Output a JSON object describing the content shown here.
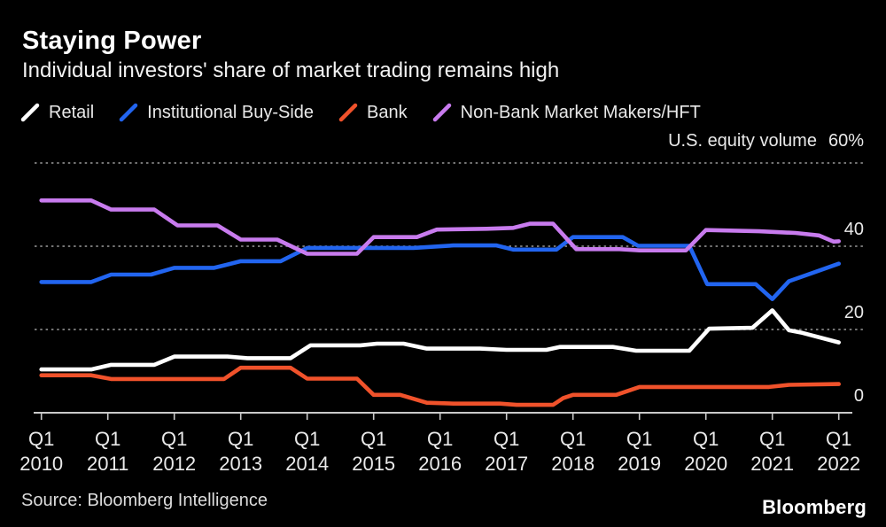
{
  "header": {
    "title": "Staying Power",
    "subtitle": "Individual investors' share of market trading remains high"
  },
  "legend": [
    {
      "label": "Retail",
      "color": "#ffffff"
    },
    {
      "label": "Institutional Buy-Side",
      "color": "#2265f0"
    },
    {
      "label": "Bank",
      "color": "#f0522b"
    },
    {
      "label": "Non-Bank Market Makers/HFT",
      "color": "#c87bee"
    }
  ],
  "chart_data": {
    "type": "line",
    "title": "Staying Power",
    "subtitle": "Individual investors' share of market trading remains high",
    "axis_note": "U.S. equity volume",
    "axis_note_value": "60%",
    "unit": "%",
    "x_range": [
      2010,
      2022
    ],
    "y_range": [
      0,
      60
    ],
    "grid": "horizontal dotted lines at 20, 40, 60",
    "legend_position": "top",
    "y_gridlines": [
      20,
      40,
      60
    ],
    "y_labels": [
      {
        "value": 40,
        "label": "40"
      },
      {
        "value": 20,
        "label": "20"
      },
      {
        "value": 0,
        "label": "0"
      }
    ],
    "x_ticks": [
      {
        "quarter": "Q1",
        "year": "2010"
      },
      {
        "quarter": "Q1",
        "year": "2011"
      },
      {
        "quarter": "Q1",
        "year": "2012"
      },
      {
        "quarter": "Q1",
        "year": "2013"
      },
      {
        "quarter": "Q1",
        "year": "2014"
      },
      {
        "quarter": "Q1",
        "year": "2015"
      },
      {
        "quarter": "Q1",
        "year": "2016"
      },
      {
        "quarter": "Q1",
        "year": "2017"
      },
      {
        "quarter": "Q1",
        "year": "2018"
      },
      {
        "quarter": "Q1",
        "year": "2019"
      },
      {
        "quarter": "Q1",
        "year": "2020"
      },
      {
        "quarter": "Q1",
        "year": "2021"
      },
      {
        "quarter": "Q1",
        "year": "2022"
      }
    ],
    "series": [
      {
        "name": "Retail",
        "color": "#ffffff",
        "points": [
          [
            2010,
            10.4
          ],
          [
            2010.75,
            10.4
          ],
          [
            2011.05,
            11.5
          ],
          [
            2011.7,
            11.5
          ],
          [
            2012,
            13.5
          ],
          [
            2012.8,
            13.5
          ],
          [
            2013.1,
            13.1
          ],
          [
            2013.75,
            13.1
          ],
          [
            2014.05,
            16.2
          ],
          [
            2014.8,
            16.2
          ],
          [
            2015.05,
            16.6
          ],
          [
            2015.45,
            16.6
          ],
          [
            2015.8,
            15.4
          ],
          [
            2016.6,
            15.4
          ],
          [
            2017,
            15.1
          ],
          [
            2017.6,
            15.1
          ],
          [
            2017.8,
            15.8
          ],
          [
            2018.6,
            15.8
          ],
          [
            2018.95,
            14.9
          ],
          [
            2019.75,
            14.9
          ],
          [
            2020.05,
            20.2
          ],
          [
            2020.7,
            20.4
          ],
          [
            2021,
            24.6
          ],
          [
            2021.25,
            19.8
          ],
          [
            2021.45,
            19.2
          ],
          [
            2022,
            16.9
          ]
        ]
      },
      {
        "name": "Bank",
        "color": "#f0522b",
        "points": [
          [
            2010,
            9.0
          ],
          [
            2010.75,
            9.0
          ],
          [
            2011.05,
            8.1
          ],
          [
            2012.75,
            8.1
          ],
          [
            2013,
            10.8
          ],
          [
            2013.75,
            10.8
          ],
          [
            2014,
            8.2
          ],
          [
            2014.75,
            8.2
          ],
          [
            2015,
            4.3
          ],
          [
            2015.4,
            4.3
          ],
          [
            2015.8,
            2.4
          ],
          [
            2016.2,
            2.2
          ],
          [
            2016.9,
            2.2
          ],
          [
            2017.15,
            1.9
          ],
          [
            2017.7,
            1.9
          ],
          [
            2017.85,
            3.5
          ],
          [
            2018,
            4.3
          ],
          [
            2018.65,
            4.3
          ],
          [
            2019,
            6.2
          ],
          [
            2020.95,
            6.2
          ],
          [
            2021.25,
            6.7
          ],
          [
            2022,
            6.9
          ]
        ]
      },
      {
        "name": "Institutional Buy-Side",
        "color": "#2265f0",
        "points": [
          [
            2010,
            31.4
          ],
          [
            2010.75,
            31.4
          ],
          [
            2011.05,
            33.2
          ],
          [
            2011.65,
            33.2
          ],
          [
            2012,
            34.8
          ],
          [
            2012.6,
            34.8
          ],
          [
            2013,
            36.4
          ],
          [
            2013.6,
            36.4
          ],
          [
            2014,
            39.6
          ],
          [
            2015.6,
            39.6
          ],
          [
            2016.2,
            40.2
          ],
          [
            2016.85,
            40.2
          ],
          [
            2017.1,
            39.2
          ],
          [
            2017.75,
            39.2
          ],
          [
            2018,
            42.2
          ],
          [
            2018.75,
            42.2
          ],
          [
            2018.98,
            40.1
          ],
          [
            2019.75,
            40.1
          ],
          [
            2020.02,
            30.9
          ],
          [
            2020.75,
            30.9
          ],
          [
            2021,
            27.3
          ],
          [
            2021.25,
            31.6
          ],
          [
            2022,
            35.8
          ]
        ]
      },
      {
        "name": "Non-Bank Market Makers/HFT",
        "color": "#c87bee",
        "points": [
          [
            2010,
            51.0
          ],
          [
            2010.75,
            51.0
          ],
          [
            2011.05,
            48.8
          ],
          [
            2011.7,
            48.8
          ],
          [
            2012.05,
            45.0
          ],
          [
            2012.65,
            45.0
          ],
          [
            2013,
            41.6
          ],
          [
            2013.55,
            41.6
          ],
          [
            2014,
            38.2
          ],
          [
            2014.75,
            38.2
          ],
          [
            2015,
            42.2
          ],
          [
            2015.65,
            42.2
          ],
          [
            2015.95,
            44.0
          ],
          [
            2016.7,
            44.2
          ],
          [
            2017.1,
            44.4
          ],
          [
            2017.35,
            45.4
          ],
          [
            2017.7,
            45.4
          ],
          [
            2018.05,
            39.3
          ],
          [
            2018.7,
            39.3
          ],
          [
            2019,
            39.0
          ],
          [
            2019.7,
            39.0
          ],
          [
            2020,
            43.9
          ],
          [
            2020.8,
            43.6
          ],
          [
            2021.35,
            43.2
          ],
          [
            2021.7,
            42.6
          ],
          [
            2021.92,
            41.1
          ],
          [
            2022,
            41.2
          ]
        ]
      }
    ]
  },
  "footer": {
    "source": "Source: Bloomberg Intelligence",
    "logo": "Bloomberg"
  }
}
